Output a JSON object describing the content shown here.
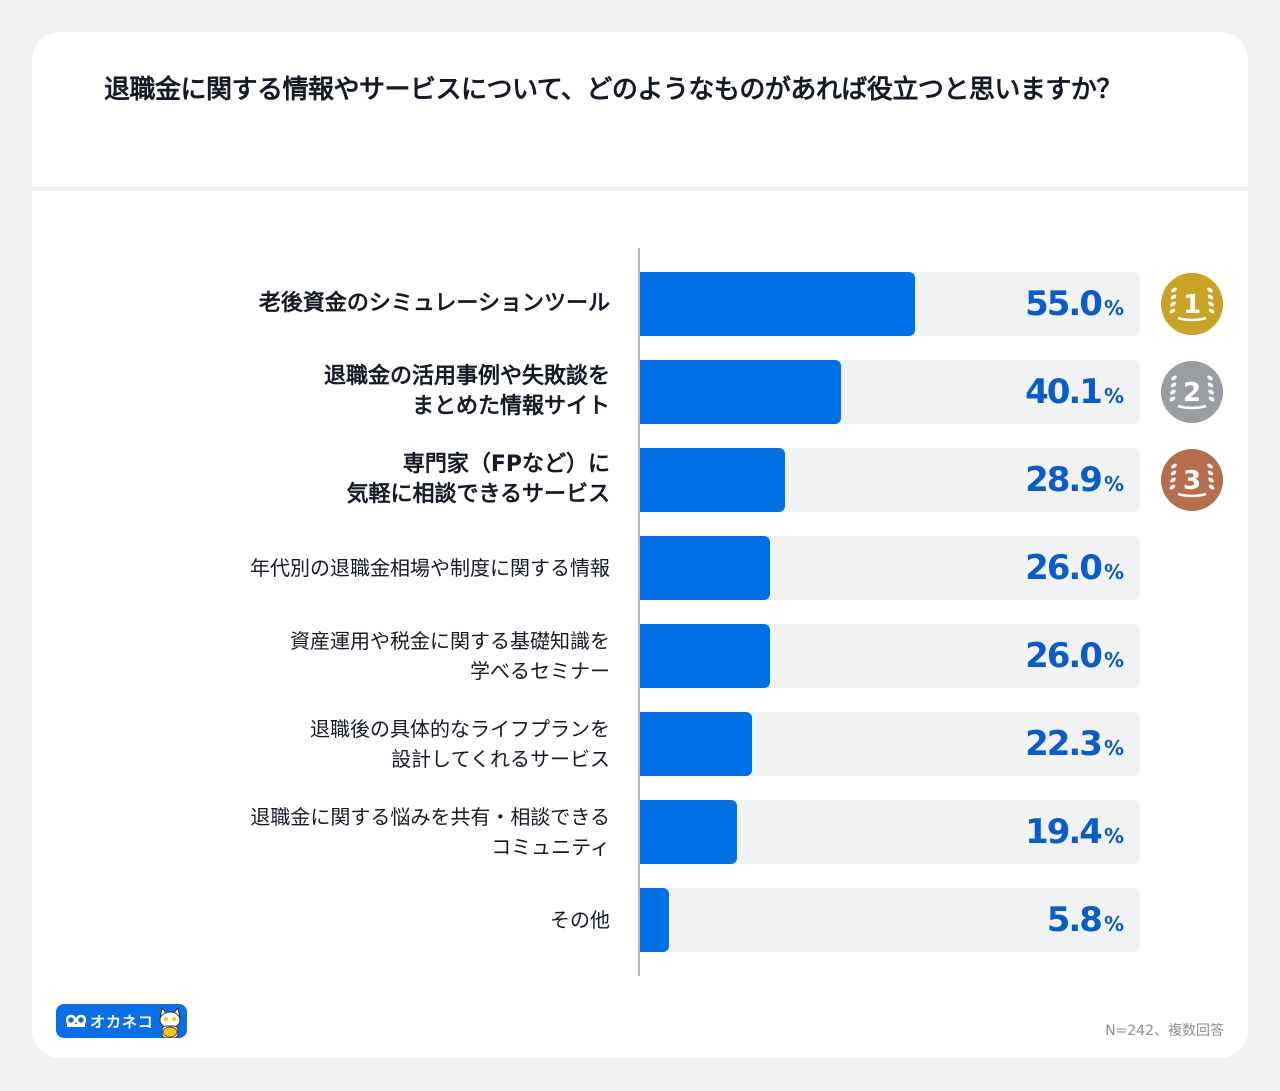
{
  "title": "退職金に関する情報やサービスについて、どのようなものがあれば役立つと思いますか？",
  "footer": {
    "note": "N=242、複数回答",
    "brand": "オカネコ"
  },
  "colors": {
    "bar": "#0070e5",
    "track": "#f1f2f4",
    "value_text": "#0a5cc7",
    "gold": "#c9a227",
    "silver": "#9a9ea3",
    "bronze": "#b56f4e"
  },
  "chart_data": {
    "type": "bar",
    "orientation": "horizontal",
    "title": "退職金に関する情報やサービスについて、どのようなものがあれば役立つと思いますか？",
    "xlabel": "",
    "ylabel": "",
    "xlim": [
      0,
      100
    ],
    "unit": "%",
    "grid": false,
    "categories": [
      "老後資金のシミュレーションツール",
      "退職金の活用事例や失敗談を\nまとめた情報サイト",
      "専門家（FPなど）に\n気軽に相談できるサービス",
      "年代別の退職金相場や制度に関する情報",
      "資産運用や税金に関する基礎知識を\n学べるセミナー",
      "退職後の具体的なライフプランを\n設計してくれるサービス",
      "退職金に関する悩みを共有・相談できる\nコミュニティ",
      "その他"
    ],
    "values": [
      55.0,
      40.1,
      28.9,
      26.0,
      26.0,
      22.3,
      19.4,
      5.8
    ],
    "value_labels": [
      "55.0",
      "40.1",
      "28.9",
      "26.0",
      "26.0",
      "22.3",
      "19.4",
      "5.8"
    ],
    "rank_badges": [
      {
        "rank": "1",
        "icon": "gold-medal-icon"
      },
      {
        "rank": "2",
        "icon": "silver-medal-icon"
      },
      {
        "rank": "3",
        "icon": "bronze-medal-icon"
      }
    ],
    "annotations": [
      "N=242、複数回答"
    ]
  }
}
